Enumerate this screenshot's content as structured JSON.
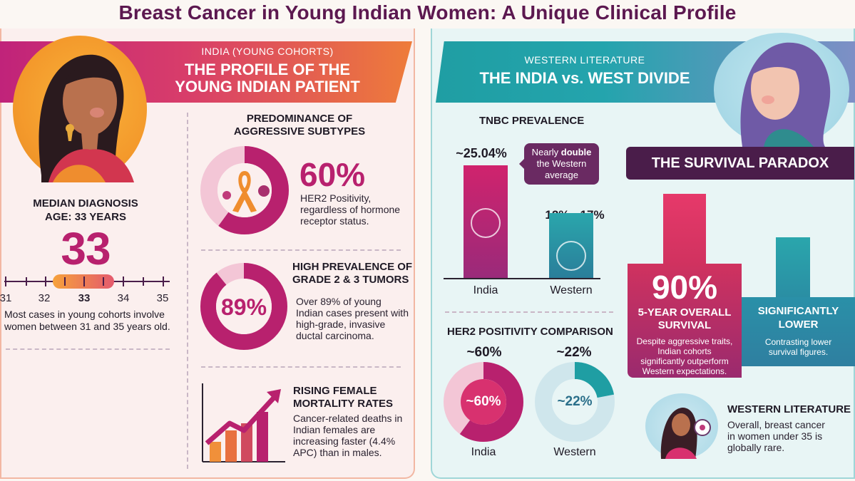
{
  "title": "Breast Cancer in Young Indian Women: A Unique Clinical Profile",
  "left": {
    "kicker": "INDIA (YOUNG COHORTS)",
    "heading_line1": "THE PROFILE OF THE",
    "heading_line2": "YOUNG INDIAN PATIENT",
    "median_line1": "MEDIAN DIAGNOSIS",
    "median_line2": "AGE: 33 YEARS",
    "median_value": "33",
    "age_ticks": [
      "31",
      "32",
      "33",
      "34",
      "35"
    ],
    "age_note": "Most cases in young cohorts involve women between 31 and 35 years old.",
    "subtypes": {
      "head_line1": "PREDOMINANCE OF",
      "head_line2": "AGGRESSIVE SUBTYPES",
      "value": "60%",
      "body": "HER2 Positivity, regardless of hormone receptor status.",
      "fraction": 0.6
    },
    "grade": {
      "head_line1": "HIGH PREVALENCE OF",
      "head_line2": "GRADE 2 & 3 TUMORS",
      "value": "89%",
      "body": "Over 89% of young Indian cases present with high-grade, invasive ductal carcinoma.",
      "fraction": 0.89
    },
    "mortality": {
      "head_line1": "RISING FEMALE",
      "head_line2": "MORTALITY RATES",
      "body": "Cancer-related deaths in Indian females are increasing faster (4.4% APC) than in males."
    }
  },
  "right": {
    "kicker": "WESTERN LITERATURE",
    "heading": "THE INDIA vs. WEST DIVIDE",
    "tnbc": {
      "head": "TNBC PREVALENCE",
      "india_value": "~25.04%",
      "west_value": "12% - 17%",
      "callout_line1": "Nearly",
      "callout_bold": "double",
      "callout_line2": "the Western",
      "callout_line3": "average",
      "india_label": "India",
      "west_label": "Western",
      "india_pct": 25.04,
      "west_pct": 14.5
    },
    "her2": {
      "head": "HER2 POSITIVITY COMPARISON",
      "india_value": "~60%",
      "west_value": "~22%",
      "india_inner": "~60%",
      "west_inner": "~22%",
      "india_label": "India",
      "west_label": "Western",
      "india_fraction": 0.6,
      "west_fraction": 0.22
    },
    "paradox": {
      "head": "THE SURVIVAL PARADOX",
      "india_value": "90%",
      "india_line1": "5-YEAR OVERALL",
      "india_line2": "SURVIVAL",
      "india_body": "Despite aggressive traits, Indian cohorts significantly outperform Western expectations.",
      "west_line1": "SIGNIFICANTLY",
      "west_line2": "LOWER",
      "west_body": "Contrasting lower survival figures."
    },
    "western": {
      "head": "WESTERN LITERATURE",
      "body": "Overall, breast cancer in women under 35 is globally rare."
    }
  },
  "colors": {
    "magenta": "#b8216e",
    "orange": "#f0903a",
    "teal": "#1f9ea3",
    "plum": "#4a1d4a"
  }
}
